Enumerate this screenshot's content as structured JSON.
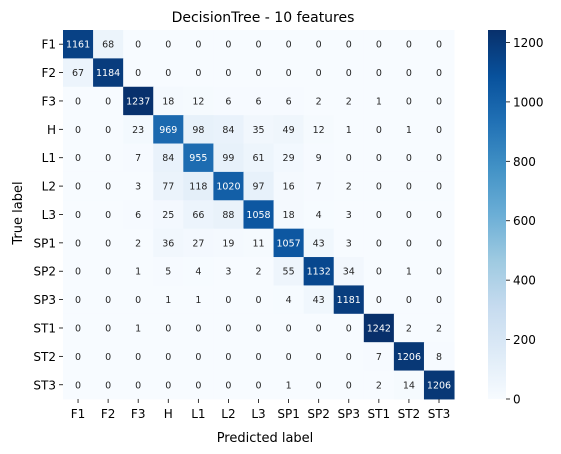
{
  "chart_data": {
    "type": "heatmap",
    "title": "DecisionTree - 10 features",
    "xlabel": "Predicted label",
    "ylabel": "True label",
    "x_categories": [
      "F1",
      "F2",
      "F3",
      "H",
      "L1",
      "L2",
      "L3",
      "SP1",
      "SP2",
      "SP3",
      "ST1",
      "ST2",
      "ST3"
    ],
    "y_categories": [
      "F1",
      "F2",
      "F3",
      "H",
      "L1",
      "L2",
      "L3",
      "SP1",
      "SP2",
      "SP3",
      "ST1",
      "ST2",
      "ST3"
    ],
    "values": [
      [
        1161,
        68,
        0,
        0,
        0,
        0,
        0,
        0,
        0,
        0,
        0,
        0,
        0
      ],
      [
        67,
        1184,
        0,
        0,
        0,
        0,
        0,
        0,
        0,
        0,
        0,
        0,
        0
      ],
      [
        0,
        0,
        1237,
        18,
        12,
        6,
        6,
        6,
        2,
        2,
        1,
        0,
        0
      ],
      [
        0,
        0,
        23,
        969,
        98,
        84,
        35,
        49,
        12,
        1,
        0,
        1,
        0
      ],
      [
        0,
        0,
        7,
        84,
        955,
        99,
        61,
        29,
        9,
        0,
        0,
        0,
        0
      ],
      [
        0,
        0,
        3,
        77,
        118,
        1020,
        97,
        16,
        7,
        2,
        0,
        0,
        0
      ],
      [
        0,
        0,
        6,
        25,
        66,
        88,
        1058,
        18,
        4,
        3,
        0,
        0,
        0
      ],
      [
        0,
        0,
        2,
        36,
        27,
        19,
        11,
        1057,
        43,
        3,
        0,
        0,
        0
      ],
      [
        0,
        0,
        1,
        5,
        4,
        3,
        2,
        55,
        1132,
        34,
        0,
        1,
        0
      ],
      [
        0,
        0,
        0,
        1,
        1,
        0,
        0,
        4,
        43,
        1181,
        0,
        0,
        0
      ],
      [
        0,
        0,
        1,
        0,
        0,
        0,
        0,
        0,
        0,
        0,
        1242,
        2,
        2
      ],
      [
        0,
        0,
        0,
        0,
        0,
        0,
        0,
        0,
        0,
        0,
        7,
        1206,
        8
      ],
      [
        0,
        0,
        0,
        0,
        0,
        0,
        0,
        1,
        0,
        0,
        2,
        14,
        1206
      ]
    ],
    "colormap": "Blues",
    "color_range": [
      0,
      1242
    ],
    "colorbar_ticks": [
      0,
      200,
      400,
      600,
      800,
      1000,
      1200
    ],
    "annotation_colors": {
      "light": "#ffffff",
      "dark": "#262626"
    }
  }
}
